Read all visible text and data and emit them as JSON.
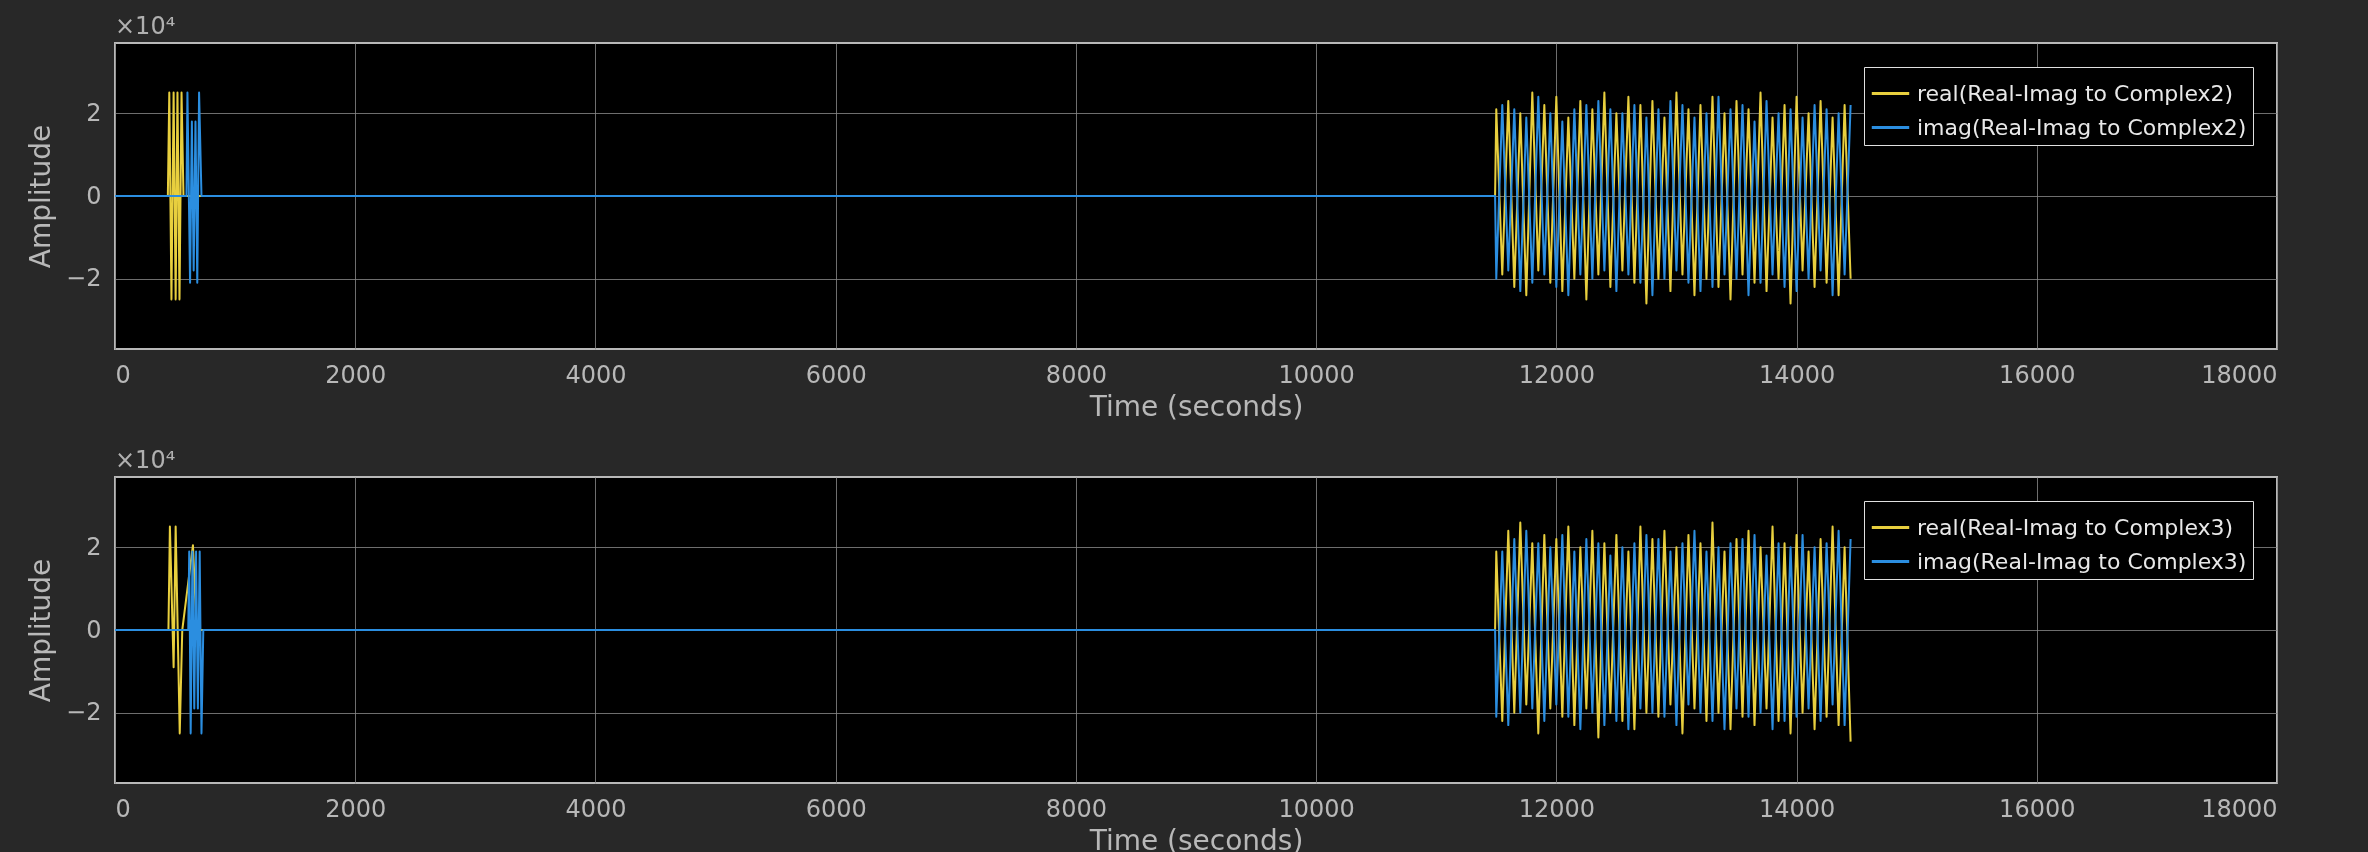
{
  "chart_data": [
    {
      "type": "line",
      "xlabel": "Time (seconds)",
      "ylabel": "Amplitude",
      "annotations": [
        "×10⁴"
      ],
      "xlim": [
        0,
        18000
      ],
      "xticks": [
        0,
        2000,
        4000,
        6000,
        8000,
        10000,
        12000,
        14000,
        16000,
        18000
      ],
      "ylim": [
        -3.7,
        3.7
      ],
      "yticks": [
        -2,
        0,
        2
      ],
      "grid": true,
      "legend": "top right",
      "series": [
        {
          "name": "real(Real-Imag to Complex2)",
          "color": "#e8cf3e",
          "x": [
            0,
            440,
            452,
            470,
            488,
            505,
            520,
            537,
            554,
            570,
            590,
            700,
            11490,
            11500,
            11550,
            11600,
            11650,
            11700,
            11750,
            11800,
            11850,
            11900,
            11950,
            12000,
            12050,
            12100,
            12150,
            12200,
            12250,
            12300,
            12350,
            12400,
            12450,
            12500,
            12550,
            12600,
            12650,
            12700,
            12750,
            12800,
            12850,
            12900,
            12950,
            13000,
            13050,
            13100,
            13150,
            13200,
            13250,
            13300,
            13350,
            13400,
            13450,
            13500,
            13550,
            13600,
            13650,
            13700,
            13750,
            13800,
            13850,
            13900,
            13950,
            14000,
            14050,
            14100,
            14150,
            14200,
            14250,
            14300,
            14350,
            14400,
            14450
          ],
          "values": [
            0,
            0,
            2.5,
            -2.5,
            2.5,
            -2.5,
            2.5,
            -2.5,
            2.5,
            0,
            0,
            0,
            0,
            2.1,
            -1.9,
            2.3,
            -2.2,
            2.0,
            -2.4,
            2.5,
            -1.8,
            2.2,
            -2.1,
            2.4,
            -2.3,
            1.9,
            -2.0,
            2.3,
            -2.5,
            2.1,
            -1.9,
            2.5,
            -2.2,
            2.0,
            -1.8,
            2.4,
            -2.1,
            2.2,
            -2.6,
            2.3,
            -2.0,
            1.9,
            -2.3,
            2.5,
            -1.9,
            2.1,
            -2.4,
            2.2,
            -2.0,
            2.4,
            -2.2,
            2.0,
            -2.5,
            2.3,
            -1.9,
            2.1,
            -2.1,
            2.5,
            -2.3,
            1.9,
            -2.0,
            2.2,
            -2.6,
            2.4,
            -1.8,
            2.0,
            -2.2,
            2.3,
            -2.1,
            1.9,
            -2.4,
            2.2,
            -2.0
          ]
        },
        {
          "name": "imag(Real-Imag to Complex2)",
          "color": "#2b8ee0",
          "x": [
            0,
            595,
            603,
            625,
            640,
            655,
            670,
            685,
            700,
            720,
            11490,
            11500,
            11550,
            11600,
            11650,
            11700,
            11750,
            11800,
            11850,
            11900,
            11950,
            12000,
            12050,
            12100,
            12150,
            12200,
            12250,
            12300,
            12350,
            12400,
            12450,
            12500,
            12550,
            12600,
            12650,
            12700,
            12750,
            12800,
            12850,
            12900,
            12950,
            13000,
            13050,
            13100,
            13150,
            13200,
            13250,
            13300,
            13350,
            13400,
            13450,
            13500,
            13550,
            13600,
            13650,
            13700,
            13750,
            13800,
            13850,
            13900,
            13950,
            14000,
            14050,
            14100,
            14150,
            14200,
            14250,
            14300,
            14350,
            14400,
            14450
          ],
          "values": [
            0,
            0,
            2.5,
            -2.1,
            1.8,
            -1.8,
            1.8,
            -2.1,
            2.5,
            0,
            0,
            -2.0,
            2.2,
            -1.8,
            2.1,
            -2.3,
            1.9,
            -2.1,
            2.4,
            -1.9,
            2.0,
            -2.2,
            1.8,
            -2.4,
            2.1,
            -1.9,
            2.2,
            -2.0,
            2.3,
            -1.8,
            2.1,
            -2.3,
            2.0,
            -1.9,
            2.2,
            -2.1,
            1.9,
            -2.4,
            2.1,
            -2.0,
            2.3,
            -1.8,
            2.2,
            -2.1,
            1.9,
            -2.3,
            2.0,
            -2.2,
            2.4,
            -1.9,
            2.1,
            -2.0,
            2.2,
            -2.4,
            1.8,
            -2.1,
            2.3,
            -1.9,
            2.0,
            -2.2,
            2.1,
            -2.3,
            1.9,
            -2.0,
            2.2,
            -1.8,
            2.1,
            -2.4,
            2.0,
            -1.9,
            2.2
          ]
        }
      ]
    },
    {
      "type": "line",
      "xlabel": "Time (seconds)",
      "ylabel": "Amplitude",
      "annotations": [
        "×10⁴"
      ],
      "xlim": [
        0,
        18000
      ],
      "xticks": [
        0,
        2000,
        4000,
        6000,
        8000,
        10000,
        12000,
        14000,
        16000,
        18000
      ],
      "ylim": [
        -3.7,
        3.7
      ],
      "yticks": [
        -2,
        0,
        2
      ],
      "grid": true,
      "legend": "top right",
      "series": [
        {
          "name": "real(Real-Imag to Complex3)",
          "color": "#e8cf3e",
          "x": [
            0,
            445,
            457,
            488,
            505,
            539,
            560,
            649,
            680,
            11490,
            11500,
            11550,
            11600,
            11650,
            11700,
            11750,
            11800,
            11850,
            11900,
            11950,
            12000,
            12050,
            12100,
            12150,
            12200,
            12250,
            12300,
            12350,
            12400,
            12450,
            12500,
            12550,
            12600,
            12650,
            12700,
            12750,
            12800,
            12850,
            12900,
            12950,
            13000,
            13050,
            13100,
            13150,
            13200,
            13250,
            13300,
            13350,
            13400,
            13450,
            13500,
            13550,
            13600,
            13650,
            13700,
            13750,
            13800,
            13850,
            13900,
            13950,
            14000,
            14050,
            14100,
            14150,
            14200,
            14250,
            14300,
            14350,
            14400,
            14450
          ],
          "values": [
            0,
            0,
            2.5,
            -0.9,
            2.5,
            -2.5,
            0,
            2.05,
            0,
            0,
            1.9,
            -2.2,
            2.4,
            -2.0,
            2.6,
            -1.8,
            2.1,
            -2.5,
            2.3,
            -1.9,
            2.2,
            -2.1,
            2.5,
            -2.3,
            2.0,
            -1.9,
            2.4,
            -2.6,
            2.1,
            -2.0,
            2.3,
            -2.2,
            1.9,
            -2.4,
            2.5,
            -2.0,
            2.2,
            -2.1,
            2.4,
            -1.8,
            2.0,
            -2.5,
            2.3,
            -1.9,
            2.1,
            -2.2,
            2.6,
            -2.0,
            1.9,
            -2.4,
            2.2,
            -2.1,
            2.4,
            -2.3,
            2.0,
            -1.9,
            2.5,
            -2.2,
            2.1,
            -2.5,
            2.3,
            -2.0,
            1.9,
            -2.4,
            2.2,
            -2.1,
            2.5,
            -2.3,
            2.0,
            -2.7
          ]
        },
        {
          "name": "imag(Real-Imag to Complex3)",
          "color": "#2b8ee0",
          "x": [
            0,
            610,
            618,
            630,
            645,
            660,
            675,
            690,
            705,
            720,
            735,
            11490,
            11500,
            11550,
            11600,
            11650,
            11700,
            11750,
            11800,
            11850,
            11900,
            11950,
            12000,
            12050,
            12100,
            12150,
            12200,
            12250,
            12300,
            12350,
            12400,
            12450,
            12500,
            12550,
            12600,
            12650,
            12700,
            12750,
            12800,
            12850,
            12900,
            12950,
            13000,
            13050,
            13100,
            13150,
            13200,
            13250,
            13300,
            13350,
            13400,
            13450,
            13500,
            13550,
            13600,
            13650,
            13700,
            13750,
            13800,
            13850,
            13900,
            13950,
            14000,
            14050,
            14100,
            14150,
            14200,
            14250,
            14300,
            14350,
            14400,
            14450
          ],
          "values": [
            0,
            0,
            1.9,
            -2.5,
            1.9,
            -1.9,
            1.9,
            -1.9,
            1.9,
            -2.5,
            0,
            0,
            -2.1,
            1.9,
            -2.3,
            2.2,
            -2.0,
            2.4,
            -1.9,
            2.1,
            -2.2,
            2.0,
            -1.8,
            2.3,
            -2.1,
            1.9,
            -2.4,
            2.2,
            -2.0,
            2.1,
            -2.3,
            1.8,
            -2.2,
            2.0,
            -2.4,
            2.1,
            -1.9,
            2.3,
            -2.0,
            2.2,
            -2.1,
            1.9,
            -2.3,
            2.1,
            -1.8,
            2.4,
            -2.0,
            1.9,
            -2.2,
            2.0,
            -2.4,
            2.1,
            -1.9,
            2.2,
            -2.1,
            2.3,
            -2.0,
            1.8,
            -2.4,
            2.1,
            -2.2,
            2.0,
            -2.1,
            2.3,
            -1.9,
            2.0,
            -2.2,
            2.1,
            -1.8,
            2.4,
            -2.3,
            2.2
          ]
        }
      ]
    }
  ]
}
